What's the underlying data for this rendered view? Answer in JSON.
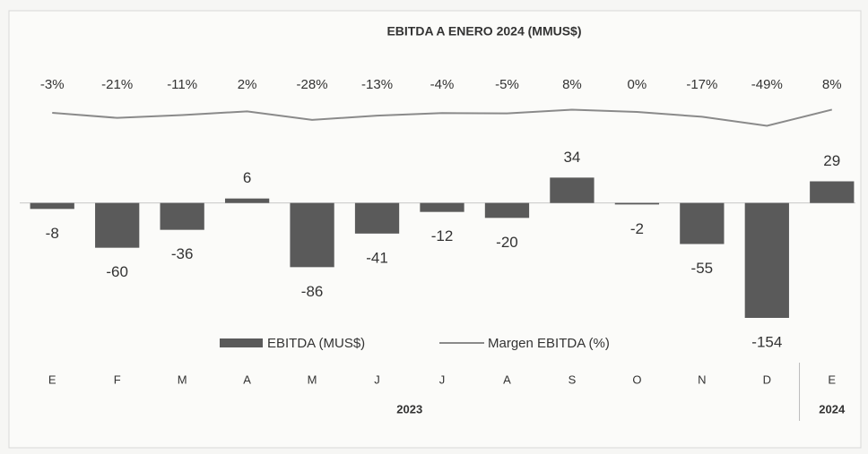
{
  "chart_data": {
    "type": "bar",
    "title": "EBITDA A ENERO 2024 (MMUS$)",
    "categories": [
      "E",
      "F",
      "M",
      "A",
      "M",
      "J",
      "J",
      "A",
      "S",
      "O",
      "N",
      "D",
      "E"
    ],
    "groups": [
      {
        "label": "2023",
        "count": 12
      },
      {
        "label": "2024",
        "count": 1
      }
    ],
    "series": [
      {
        "name": "EBITDA (MUS$)",
        "color": "#5a5a5a",
        "values": [
          -8,
          -60,
          -36,
          6,
          -86,
          -41,
          -12,
          -20,
          34,
          -2,
          -55,
          -154,
          29
        ]
      },
      {
        "name": "Margen EBITDA (%)",
        "color": "#8a8a8a",
        "axis": "y2",
        "values": [
          -3,
          -21,
          -11,
          2,
          -28,
          -13,
          -4,
          -5,
          8,
          0,
          -17,
          -49,
          8
        ],
        "value_labels": [
          "-3%",
          "-21%",
          "-11%",
          "2%",
          "-28%",
          "-13%",
          "-4%",
          "-5%",
          "8%",
          "0%",
          "-17%",
          "-49%",
          "8%"
        ]
      }
    ],
    "ylim": [
      -160,
      200
    ],
    "y2lim": [
      -300,
      300
    ],
    "grid": false
  }
}
